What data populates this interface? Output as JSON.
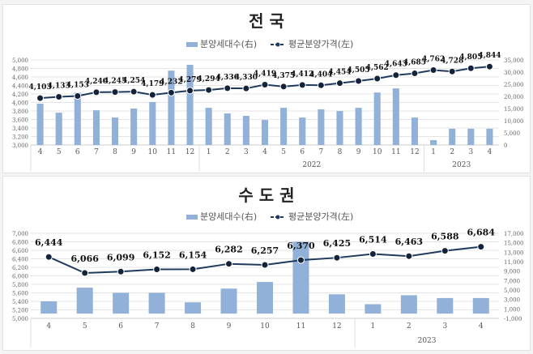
{
  "chart_data": [
    {
      "type": "bar+line",
      "title": "전 국",
      "legend": {
        "position": "top",
        "entries": [
          "분양세대수(右)",
          "평균분양가격(左)"
        ]
      },
      "categories": [
        "4",
        "5",
        "6",
        "7",
        "8",
        "9",
        "10",
        "11",
        "12",
        "1",
        "2",
        "3",
        "4",
        "5",
        "6",
        "7",
        "8",
        "9",
        "10",
        "11",
        "12",
        "1",
        "2",
        "3",
        "4"
      ],
      "year_groups": [
        {
          "label": "",
          "from": 0,
          "to": 8
        },
        {
          "label": "2022",
          "from": 9,
          "to": 20
        },
        {
          "label": "2023",
          "from": 21,
          "to": 24
        }
      ],
      "series": [
        {
          "name": "분양세대수(右)",
          "type": "bar",
          "axis": "right",
          "color": "#92b1d9",
          "values": [
            17000,
            13300,
            21600,
            14300,
            11300,
            15000,
            17700,
            30600,
            33000,
            15300,
            13000,
            12000,
            10300,
            15300,
            11300,
            14700,
            14000,
            15300,
            21600,
            23300,
            11300,
            2000,
            6700,
            6700,
            6700
          ]
        },
        {
          "name": "평균분양가격(左)",
          "type": "line",
          "axis": "left",
          "color": "#203a5c",
          "values": [
            4103,
            4133,
            4153,
            4240,
            4245,
            4254,
            4179,
            4232,
            4279,
            4294,
            4336,
            4330,
            4419,
            4375,
            4412,
            4404,
            4454,
            4505,
            4562,
            4643,
            4685,
            4762,
            4728,
            4805,
            4844
          ],
          "labels": [
            "4,103",
            "4,133",
            "4,153",
            "4,240",
            "4,245",
            "4,254",
            "4,179",
            "4,232",
            "4,279",
            "4,294",
            "4,336",
            "4,330",
            "4,419",
            "4,375",
            "4,412",
            "4,404",
            "4,454",
            "4,505",
            "4,562",
            "4,643",
            "4,685",
            "4,762",
            "4,728",
            "4,805",
            "4,844"
          ]
        }
      ],
      "left_axis": {
        "range": [
          3000,
          5000
        ],
        "ticks": [
          "3,000",
          "3,200",
          "3,400",
          "3,600",
          "3,800",
          "4,000",
          "4,200",
          "4,400",
          "4,600",
          "4,800",
          "5,000"
        ]
      },
      "right_axis": {
        "range": [
          0,
          35000
        ],
        "ticks": [
          "0",
          "5,000",
          "10,000",
          "15,000",
          "20,000",
          "25,000",
          "30,000",
          "35,000"
        ]
      },
      "grid": true
    },
    {
      "type": "bar+line",
      "title": "수 도 권",
      "legend": {
        "position": "top",
        "entries": [
          "분양세대수(右)",
          "평균분양가격(左)"
        ]
      },
      "categories": [
        "4",
        "5",
        "6",
        "7",
        "8",
        "9",
        "10",
        "11",
        "12",
        "1",
        "2",
        "3",
        "4"
      ],
      "year_groups": [
        {
          "label": "",
          "from": 0,
          "to": 8
        },
        {
          "label": "2023",
          "from": 9,
          "to": 12
        }
      ],
      "series": [
        {
          "name": "분양세대수(右)",
          "type": "bar",
          "axis": "right",
          "color": "#92b1d9",
          "values": [
            2600,
            5500,
            4400,
            4400,
            2400,
            5300,
            6700,
            15200,
            4100,
            2000,
            3900,
            3300,
            3300
          ]
        },
        {
          "name": "평균분양가격(左)",
          "type": "line",
          "axis": "left",
          "color": "#203a5c",
          "values": [
            6444,
            6066,
            6099,
            6152,
            6154,
            6282,
            6257,
            6370,
            6425,
            6514,
            6463,
            6588,
            6684
          ],
          "labels": [
            "6,444",
            "6,066",
            "6,099",
            "6,152",
            "6,154",
            "6,282",
            "6,257",
            "6,370",
            "6,425",
            "6,514",
            "6,463",
            "6,588",
            "6,684"
          ]
        }
      ],
      "left_axis": {
        "range": [
          5000,
          7000
        ],
        "ticks": [
          "5,000",
          "5,200",
          "5,400",
          "5,600",
          "5,800",
          "6,000",
          "6,200",
          "6,400",
          "6,600",
          "6,800",
          "7,000"
        ]
      },
      "right_axis": {
        "range": [
          -1000,
          17000
        ],
        "ticks": [
          "-1,000",
          "1,000",
          "3,000",
          "5,000",
          "7,000",
          "9,000",
          "11,000",
          "13,000",
          "15,000",
          "17,000"
        ]
      },
      "grid": true
    }
  ]
}
